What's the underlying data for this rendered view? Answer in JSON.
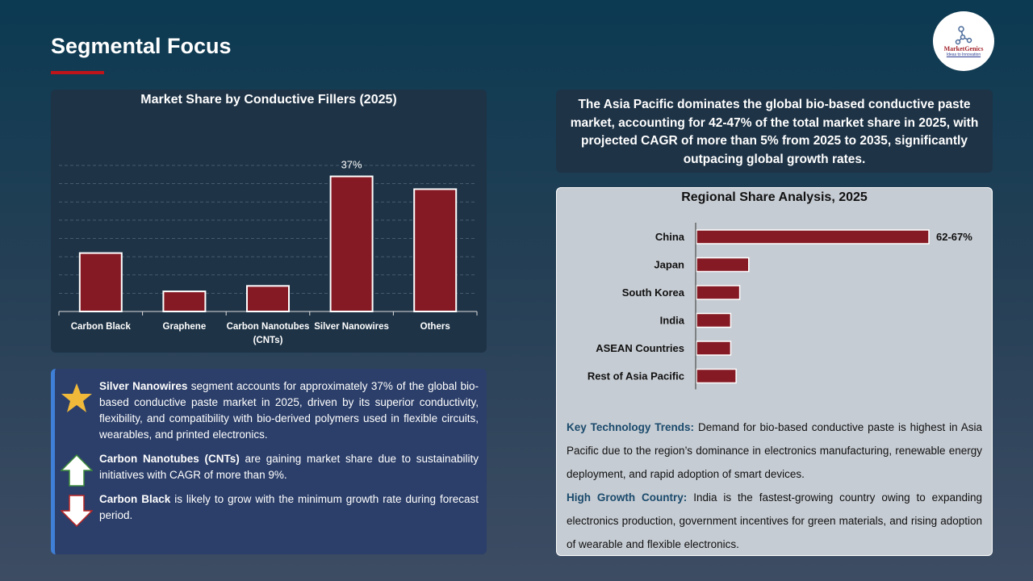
{
  "header": {
    "title": "Segmental Focus",
    "logo_name": "MarketGenics",
    "logo_tagline": "Ideas to Innovation"
  },
  "chart_data": [
    {
      "type": "bar",
      "title": "Market Share by Conductive Fillers (2025)",
      "categories": [
        "Carbon Black",
        "Graphene",
        "Carbon Nanotubes (CNTs)",
        "Silver Nanowires",
        "Others"
      ],
      "values": [
        16,
        5.5,
        7,
        37,
        33.5
      ],
      "data_labels": [
        "",
        "",
        "",
        "37%",
        ""
      ],
      "ylim": [
        0,
        40
      ],
      "grid": true,
      "bar_color": "#851a25"
    },
    {
      "type": "bar",
      "orientation": "horizontal",
      "title": "Regional Share Analysis, 2025",
      "categories": [
        "China",
        "Japan",
        "South Korea",
        "India",
        "ASEAN Countries",
        "Rest of Asia Pacific"
      ],
      "values": [
        64.5,
        14.5,
        12,
        9.5,
        9.5,
        11
      ],
      "data_labels": [
        "62-67%",
        "",
        "",
        "",
        "",
        ""
      ],
      "bar_color": "#851a25"
    }
  ],
  "insights": [
    {
      "icon": "star-icon",
      "bold": "Silver Nanowires",
      "text": " segment accounts for approximately 37% of the global bio-based conductive paste market in 2025, driven by its superior conductivity, flexibility, and compatibility with bio-derived polymers used in flexible circuits, wearables, and printed electronics."
    },
    {
      "icon": "arrow-up-icon",
      "bold": "Carbon Nanotubes (CNTs)",
      "text": " are gaining market share due to sustainability initiatives with CAGR of more than 9%."
    },
    {
      "icon": "arrow-down-icon",
      "bold": "Carbon Black",
      "text": " is likely to grow with the minimum growth rate during forecast period."
    }
  ],
  "asia_summary": "The Asia Pacific dominates the global bio-based conductive paste market, accounting for 42-47% of the total market share in 2025, with projected CAGR of more than 5% from 2025 to 2035, significantly outpacing global growth rates.",
  "regional_notes": [
    {
      "bold": "Key Technology Trends:",
      "text": " Demand for bio-based conductive paste is highest in Asia Pacific due to the region’s dominance in electronics manufacturing, renewable energy deployment, and rapid adoption of smart devices."
    },
    {
      "bold": "High Growth Country:",
      "text": " India is the fastest-growing country owing to expanding electronics production, government incentives for green materials, and rising adoption of wearable and flexible electronics."
    }
  ]
}
